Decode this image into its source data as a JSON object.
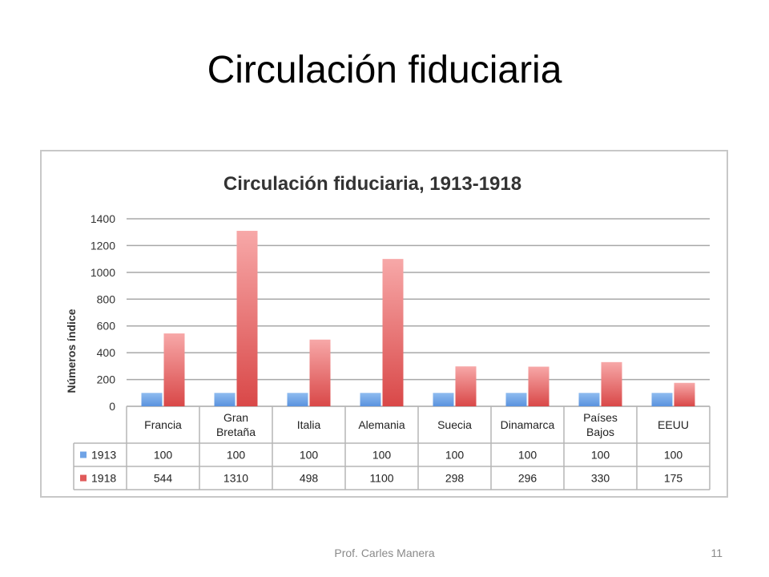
{
  "slide": {
    "title": "Circulación fiduciaria",
    "footer_author": "Prof. Carles Manera",
    "page_number": "11"
  },
  "chart_data": {
    "type": "bar",
    "title": "Circulación fiduciaria, 1913-1918",
    "ylabel": "Números índice",
    "xlabel": "",
    "ylim": [
      0,
      1400
    ],
    "yticks": [
      0,
      200,
      400,
      600,
      800,
      1000,
      1200,
      1400
    ],
    "grid": true,
    "legend": "in data table",
    "categories": [
      [
        "Francia"
      ],
      [
        "Gran",
        "Bretaña"
      ],
      [
        "Italia"
      ],
      [
        "Alemania"
      ],
      [
        "Suecia"
      ],
      [
        "Dinamarca"
      ],
      [
        "Países",
        "Bajos"
      ],
      [
        "EEUU"
      ]
    ],
    "series": [
      {
        "name": "1913",
        "color": "#6fa3e6",
        "values": [
          100,
          100,
          100,
          100,
          100,
          100,
          100,
          100
        ]
      },
      {
        "name": "1918",
        "color": "#e05a5a",
        "values": [
          544,
          1310,
          498,
          1100,
          298,
          296,
          330,
          175
        ]
      }
    ]
  }
}
